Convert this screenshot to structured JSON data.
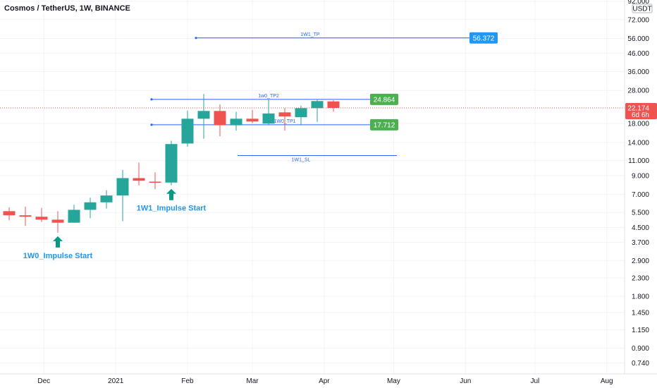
{
  "header": {
    "symbol_line": "Cosmos / TetherUS, 1W, BINANCE",
    "currency": "USDT"
  },
  "chart_data": {
    "type": "candlestick",
    "title": "Cosmos / TetherUS, 1W, BINANCE",
    "y_scale": "log",
    "ylim": [
      0.64,
      95
    ],
    "y_ticks": [
      "92.000",
      "72.000",
      "56.000",
      "46.000",
      "36.000",
      "28.000",
      "18.000",
      "14.000",
      "11.000",
      "9.000",
      "7.000",
      "5.500",
      "4.500",
      "3.700",
      "2.900",
      "2.300",
      "1.800",
      "1.450",
      "1.150",
      "0.900",
      "0.740"
    ],
    "x_labels": [
      "Dec",
      "2021",
      "Feb",
      "Mar",
      "Apr",
      "May",
      "Jun",
      "Jul",
      "Aug"
    ],
    "colors": {
      "up": "#26a69a",
      "down": "#ef5350"
    },
    "candles": [
      {
        "date": "2020-11-02",
        "open": 5.3,
        "high": 5.9,
        "low": 4.8,
        "close": 5.45
      },
      {
        "date": "2020-11-09",
        "open": 5.45,
        "high": 6.6,
        "low": 5.05,
        "close": 5.55
      },
      {
        "date": "2020-11-16",
        "open": 5.6,
        "high": 5.9,
        "low": 4.95,
        "close": 5.3
      },
      {
        "date": "2020-11-23",
        "open": 5.3,
        "high": 5.95,
        "low": 4.6,
        "close": 5.2
      },
      {
        "date": "2020-11-30",
        "open": 5.2,
        "high": 5.85,
        "low": 4.85,
        "close": 5.0
      },
      {
        "date": "2020-12-07",
        "open": 5.0,
        "high": 5.6,
        "low": 4.2,
        "close": 4.8
      },
      {
        "date": "2020-12-14",
        "open": 4.8,
        "high": 6.1,
        "low": 4.8,
        "close": 5.7
      },
      {
        "date": "2020-12-21",
        "open": 5.7,
        "high": 6.7,
        "low": 5.1,
        "close": 6.3
      },
      {
        "date": "2020-12-28",
        "open": 6.3,
        "high": 7.4,
        "low": 5.8,
        "close": 6.9
      },
      {
        "date": "2021-01-04",
        "open": 6.9,
        "high": 9.7,
        "low": 4.9,
        "close": 8.7
      },
      {
        "date": "2021-01-11",
        "open": 8.7,
        "high": 10.7,
        "low": 7.9,
        "close": 8.4
      },
      {
        "date": "2021-01-18",
        "open": 8.3,
        "high": 9.4,
        "low": 7.5,
        "close": 8.2
      },
      {
        "date": "2021-01-25",
        "open": 8.2,
        "high": 14.3,
        "low": 7.9,
        "close": 13.7
      },
      {
        "date": "2021-02-01",
        "open": 13.8,
        "high": 21.4,
        "low": 13.2,
        "close": 19.2
      },
      {
        "date": "2021-02-08",
        "open": 19.2,
        "high": 26.7,
        "low": 14.7,
        "close": 21.3
      },
      {
        "date": "2021-02-15",
        "open": 21.3,
        "high": 23.3,
        "low": 15.2,
        "close": 17.6
      },
      {
        "date": "2021-02-22",
        "open": 17.6,
        "high": 21.1,
        "low": 16.4,
        "close": 19.2
      },
      {
        "date": "2021-03-01",
        "open": 19.2,
        "high": 21.6,
        "low": 18.1,
        "close": 18.5
      },
      {
        "date": "2021-03-08",
        "open": 18.0,
        "high": 24.9,
        "low": 17.6,
        "close": 20.6
      },
      {
        "date": "2021-03-15",
        "open": 20.9,
        "high": 22.1,
        "low": 16.4,
        "close": 19.8
      },
      {
        "date": "2021-03-22",
        "open": 19.6,
        "high": 22.9,
        "low": 17.6,
        "close": 22.1
      },
      {
        "date": "2021-03-29",
        "open": 22.1,
        "high": 24.7,
        "low": 18.4,
        "close": 24.3
      },
      {
        "date": "2021-04-05",
        "open": 24.2,
        "high": 24.6,
        "low": 21.1,
        "close": 22.17
      }
    ],
    "levels": [
      {
        "label": "1W1_TP",
        "value": 56.372,
        "price_tag": "56.372",
        "tag_color": "#2196f3"
      },
      {
        "label": "1w0_TP2",
        "value": 24.864,
        "price_tag": "24.864",
        "tag_color": "#4caf50"
      },
      {
        "label": "1W0_TP1",
        "value": 17.712,
        "price_tag": "17.712",
        "tag_color": "#4caf50"
      },
      {
        "label": "1W1_SL",
        "value": 11.75,
        "price_tag": "",
        "tag_color": ""
      }
    ],
    "annotations": [
      {
        "text": "1W0_Impulse Start",
        "date": "2020-12-07"
      },
      {
        "text": "1W1_Impulse Start",
        "date": "2021-01-25"
      }
    ],
    "current_price": {
      "value": "22.174",
      "countdown": "6d 6h",
      "color": "#ef5350"
    }
  }
}
